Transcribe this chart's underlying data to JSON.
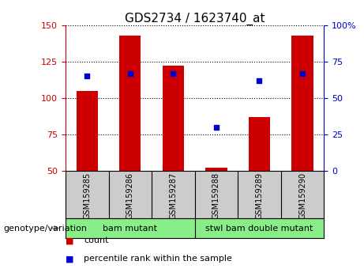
{
  "title": "GDS2734 / 1623740_at",
  "samples": [
    "GSM159285",
    "GSM159286",
    "GSM159287",
    "GSM159288",
    "GSM159289",
    "GSM159290"
  ],
  "counts": [
    105,
    143,
    122,
    52,
    87,
    143
  ],
  "percentiles": [
    65,
    67,
    67,
    30,
    62,
    67
  ],
  "ylim_left": [
    50,
    150
  ],
  "ylim_right": [
    0,
    100
  ],
  "bar_color": "#cc0000",
  "dot_color": "#0000cc",
  "group1_label": "bam mutant",
  "group2_label": "stwl bam double mutant",
  "group1_indices": [
    0,
    1,
    2
  ],
  "group2_indices": [
    3,
    4,
    5
  ],
  "group_bg_color": "#88ee88",
  "sample_bg_color": "#cccccc",
  "plot_bg_color": "#ffffff",
  "grid_color": "#000000",
  "left_axis_color": "#cc0000",
  "right_axis_color": "#0000cc",
  "yticks_left": [
    50,
    75,
    100,
    125,
    150
  ],
  "yticks_right": [
    0,
    25,
    50,
    75,
    100
  ],
  "legend_count_label": "count",
  "legend_pct_label": "percentile rank within the sample",
  "bar_width": 0.5,
  "figsize": [
    4.61,
    3.54
  ],
  "dpi": 100
}
